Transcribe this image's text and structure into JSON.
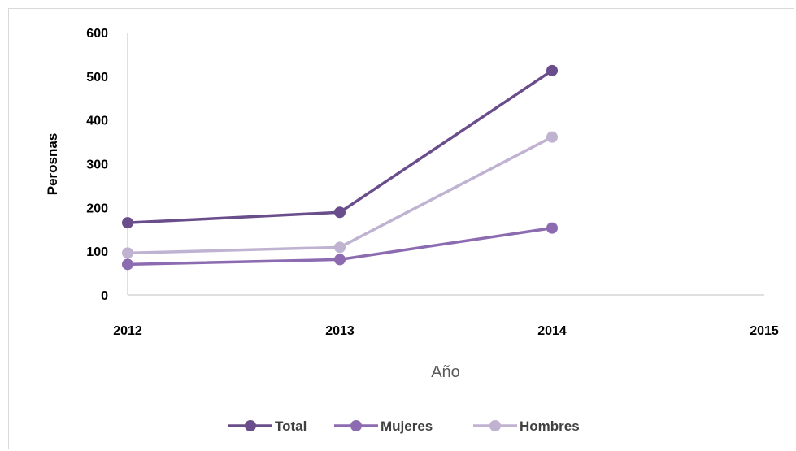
{
  "chart_data": {
    "type": "line",
    "xlabel": "Año",
    "ylabel": "Perosnas",
    "x": [
      2012,
      2013,
      2014
    ],
    "x_ticks": [
      "2012",
      "2013",
      "2014",
      "2015"
    ],
    "xlim": [
      2012,
      2015
    ],
    "ylim": [
      0,
      600
    ],
    "y_ticks": [
      "0",
      "100",
      "200",
      "300",
      "400",
      "500",
      "600"
    ],
    "grid": false,
    "legend_position": "bottom",
    "series": [
      {
        "name": "Total",
        "color": "#6a4e8c",
        "values": [
          165,
          189,
          513
        ]
      },
      {
        "name": "Mujeres",
        "color": "#8c6bb1",
        "values": [
          70,
          81,
          153
        ]
      },
      {
        "name": "Hombres",
        "color": "#bfb3d1",
        "values": [
          96,
          109,
          361
        ]
      }
    ]
  }
}
